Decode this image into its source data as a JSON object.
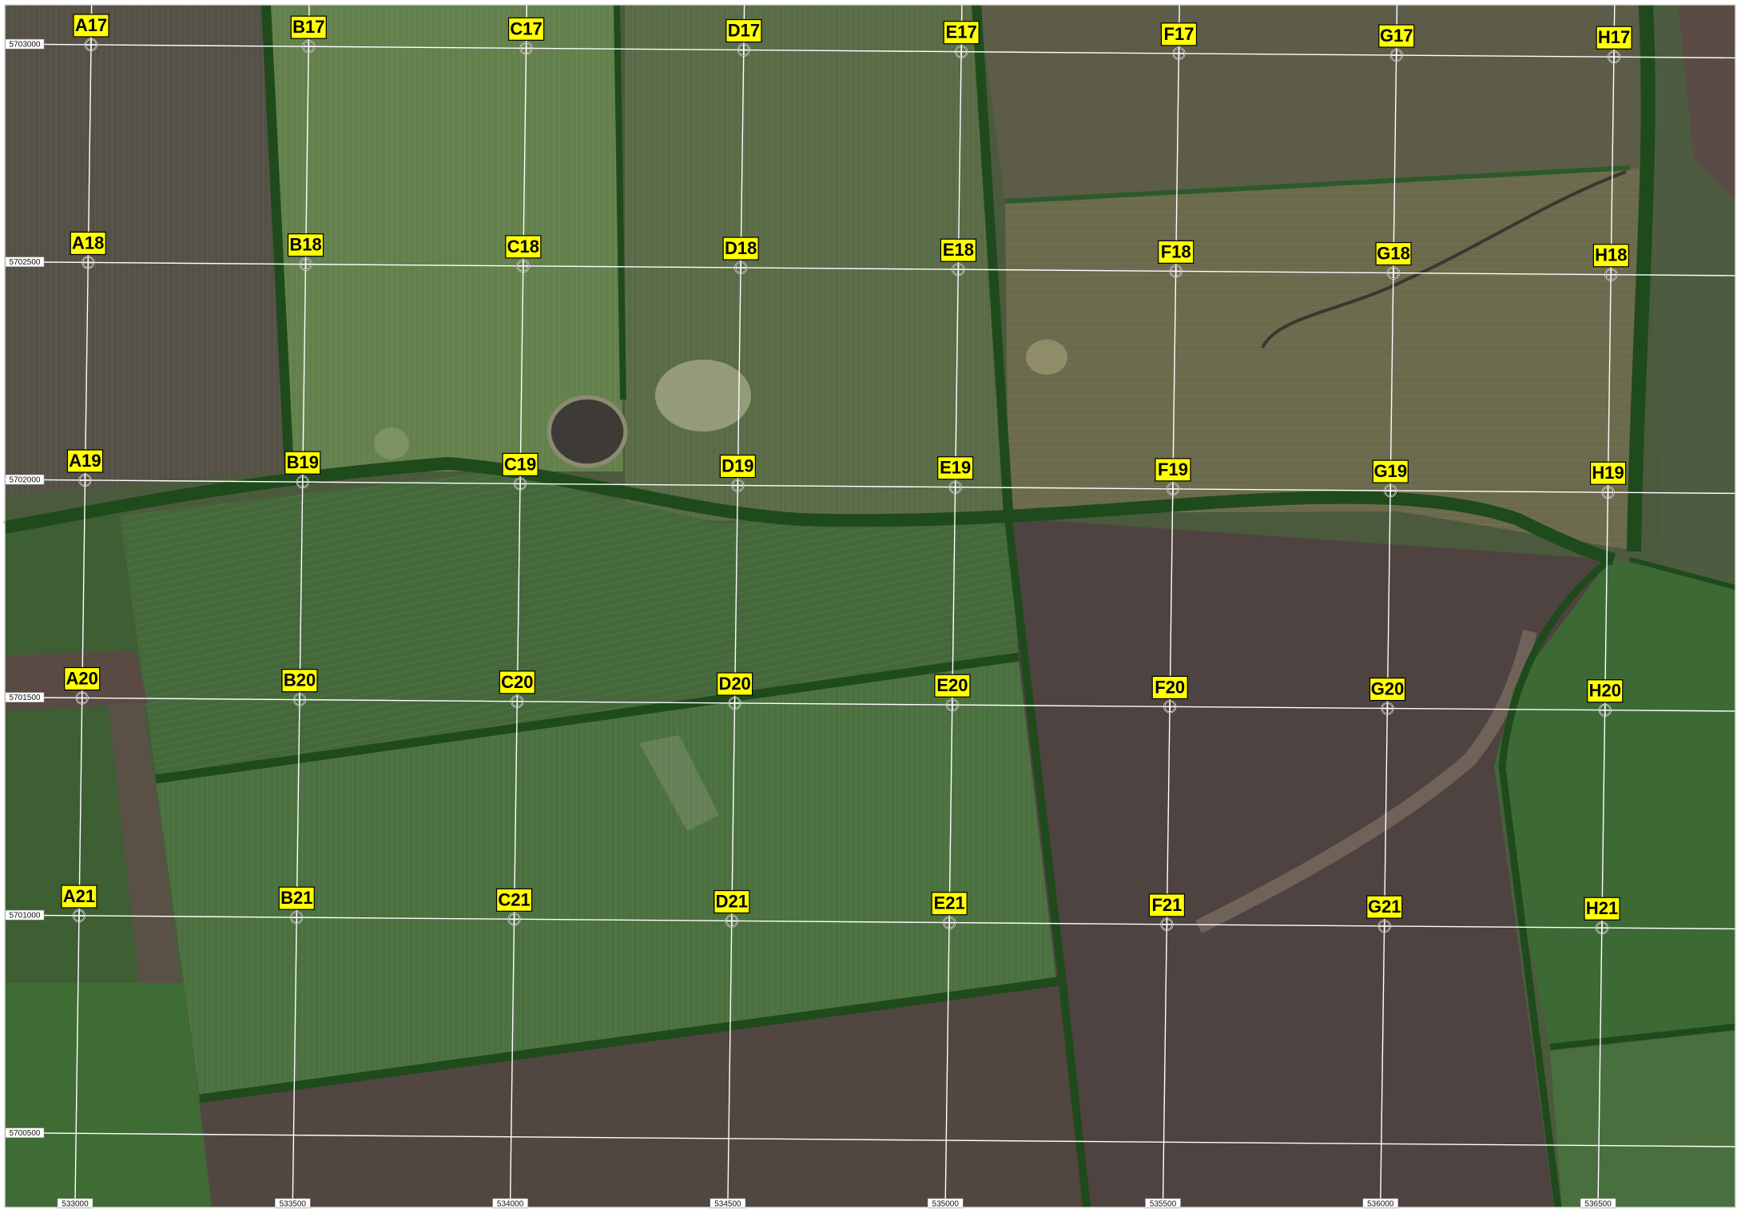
{
  "map": {
    "columns": [
      "A",
      "B",
      "C",
      "D",
      "E",
      "F",
      "G",
      "H"
    ],
    "rows": [
      "17",
      "18",
      "19",
      "20",
      "21"
    ],
    "easting_labels": [
      "533000",
      "533500",
      "534000",
      "534500",
      "535000",
      "535500",
      "536000",
      "536500"
    ],
    "northing_labels": [
      "5703000",
      "5702500",
      "5702000",
      "5701500",
      "5701000",
      "5700500"
    ],
    "colors": {
      "label_fill": "#ffff00",
      "label_border": "#000000",
      "grid_line": "#ffffff",
      "field_dark_green": "#3f6a35",
      "field_light_green": "#5e7d4a",
      "field_brown": "#4f4340",
      "tree_belt": "#1f4a1c"
    },
    "marker_icon": "crosshair-circle-icon"
  }
}
